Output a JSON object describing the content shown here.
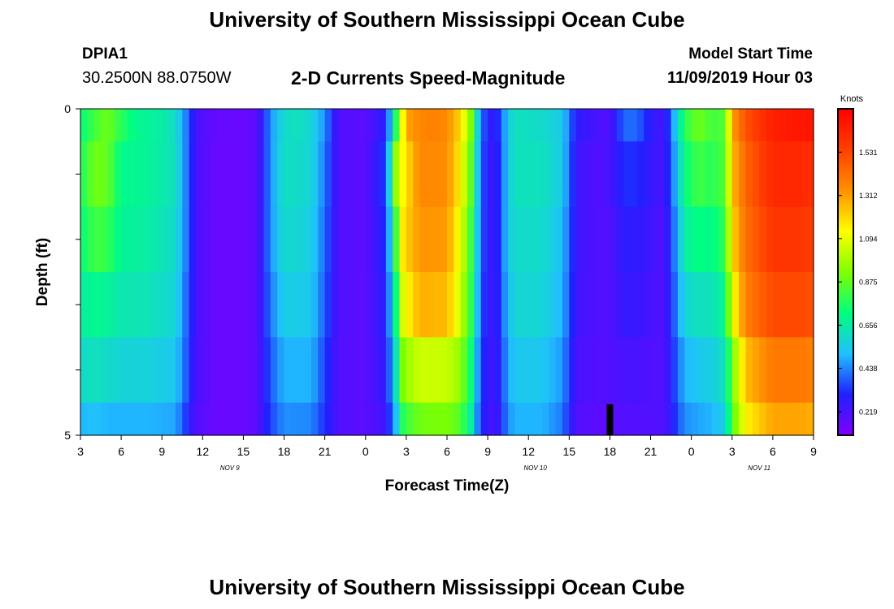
{
  "header": {
    "title": "University of Southern Mississippi Ocean Cube",
    "station_id": "DPIA1",
    "station_coords": "30.2500N 88.0750W",
    "chart_title": "2-D Currents Speed-Magnitude",
    "start_label": "Model Start Time",
    "start_value": "11/09/2019 Hour 03"
  },
  "footer": {
    "title": "University of Southern Mississippi Ocean Cube"
  },
  "chart_data": {
    "type": "heatmap",
    "title": "2-D Currents Speed-Magnitude",
    "xlabel": "Forecast Time(Z)",
    "ylabel": "Depth (ft)",
    "ylim": [
      0,
      5
    ],
    "y_tick_labels": [
      {
        "v": 0,
        "label": "0"
      },
      {
        "v": 5,
        "label": "5"
      }
    ],
    "y_minor_ticks": [
      1,
      2,
      3,
      4
    ],
    "x_range_hours": [
      3,
      57
    ],
    "x_tick_labels": [
      "3",
      "6",
      "9",
      "12",
      "15",
      "18",
      "21",
      "0",
      "3",
      "6",
      "9",
      "12",
      "15",
      "18",
      "21",
      "0",
      "3",
      "6",
      "9"
    ],
    "date_labels": [
      {
        "hour": 14,
        "label": "NOV 9"
      },
      {
        "hour": 36.5,
        "label": "NOV 10"
      },
      {
        "hour": 53,
        "label": "NOV 11"
      }
    ],
    "marker": {
      "hour": 42
    },
    "colorbar": {
      "label": "Knots",
      "min": 0.1,
      "max": 1.75,
      "ticks": [
        "0.219",
        "0.438",
        "0.656",
        "0.875",
        "1.094",
        "1.312",
        "1.531"
      ],
      "colors": [
        "#8000ff",
        "#2020ff",
        "#20c0ff",
        "#00ff80",
        "#80ff00",
        "#ffff00",
        "#ff9000",
        "#ff4000",
        "#ff0000"
      ]
    },
    "depth_bands": [
      {
        "y": [
          0.0,
          0.5
        ],
        "profile": 0
      },
      {
        "y": [
          0.5,
          1.5
        ],
        "profile": 1
      },
      {
        "y": [
          1.5,
          2.5
        ],
        "profile": 2
      },
      {
        "y": [
          2.5,
          3.5
        ],
        "profile": 3
      },
      {
        "y": [
          3.5,
          4.5
        ],
        "profile": 4
      },
      {
        "y": [
          4.5,
          5.0
        ],
        "profile": 5
      }
    ],
    "profiles": [
      [
        [
          3,
          0.72
        ],
        [
          4,
          0.82
        ],
        [
          5,
          0.9
        ],
        [
          6,
          0.78
        ],
        [
          7,
          0.7
        ],
        [
          8,
          0.68
        ],
        [
          9,
          0.66
        ],
        [
          10,
          0.6
        ],
        [
          10.7,
          0.45
        ],
        [
          11.5,
          0.22
        ],
        [
          13,
          0.16
        ],
        [
          15,
          0.15
        ],
        [
          16,
          0.18
        ],
        [
          17,
          0.45
        ],
        [
          18,
          0.6
        ],
        [
          19,
          0.62
        ],
        [
          20,
          0.58
        ],
        [
          21,
          0.45
        ],
        [
          22,
          0.2
        ],
        [
          24,
          0.18
        ],
        [
          25.5,
          0.3
        ],
        [
          26.2,
          0.75
        ],
        [
          27,
          1.3
        ],
        [
          28,
          1.36
        ],
        [
          29,
          1.38
        ],
        [
          30,
          1.35
        ],
        [
          31,
          1.2
        ],
        [
          31.8,
          0.9
        ],
        [
          32.5,
          0.4
        ],
        [
          33.5,
          0.24
        ],
        [
          34.5,
          0.55
        ],
        [
          35,
          0.62
        ],
        [
          37,
          0.6
        ],
        [
          38.5,
          0.55
        ],
        [
          39.5,
          0.28
        ],
        [
          41,
          0.22
        ],
        [
          42,
          0.2
        ],
        [
          43,
          0.4
        ],
        [
          44,
          0.4
        ],
        [
          45,
          0.28
        ],
        [
          46,
          0.22
        ],
        [
          47,
          0.6
        ],
        [
          47.5,
          0.78
        ],
        [
          48.5,
          0.9
        ],
        [
          49.5,
          0.82
        ],
        [
          50.5,
          0.85
        ],
        [
          51,
          1.3
        ],
        [
          52,
          1.5
        ],
        [
          54,
          1.65
        ],
        [
          56,
          1.68
        ],
        [
          57,
          1.68
        ]
      ],
      [
        [
          3,
          0.75
        ],
        [
          4,
          0.9
        ],
        [
          5,
          0.88
        ],
        [
          6,
          0.7
        ],
        [
          8,
          0.68
        ],
        [
          10,
          0.62
        ],
        [
          10.7,
          0.45
        ],
        [
          11.5,
          0.22
        ],
        [
          13,
          0.15
        ],
        [
          15,
          0.15
        ],
        [
          16,
          0.18
        ],
        [
          17,
          0.45
        ],
        [
          18,
          0.62
        ],
        [
          20,
          0.58
        ],
        [
          21,
          0.42
        ],
        [
          22,
          0.2
        ],
        [
          24,
          0.18
        ],
        [
          25.5,
          0.35
        ],
        [
          26.2,
          0.95
        ],
        [
          26.8,
          1.15
        ],
        [
          28,
          1.36
        ],
        [
          30,
          1.35
        ],
        [
          31,
          1.15
        ],
        [
          31.8,
          0.85
        ],
        [
          32.5,
          0.38
        ],
        [
          33.5,
          0.22
        ],
        [
          34.5,
          0.55
        ],
        [
          35,
          0.62
        ],
        [
          37,
          0.62
        ],
        [
          38.5,
          0.55
        ],
        [
          39.5,
          0.25
        ],
        [
          41,
          0.2
        ],
        [
          42,
          0.22
        ],
        [
          43,
          0.32
        ],
        [
          44,
          0.32
        ],
        [
          45,
          0.26
        ],
        [
          46,
          0.22
        ],
        [
          47,
          0.55
        ],
        [
          47.5,
          0.72
        ],
        [
          48.5,
          0.82
        ],
        [
          49.5,
          0.78
        ],
        [
          50.5,
          0.85
        ],
        [
          51,
          1.25
        ],
        [
          52,
          1.45
        ],
        [
          54,
          1.62
        ],
        [
          56,
          1.62
        ],
        [
          57,
          1.6
        ]
      ],
      [
        [
          3,
          0.72
        ],
        [
          4,
          0.82
        ],
        [
          5,
          0.8
        ],
        [
          6,
          0.68
        ],
        [
          8,
          0.66
        ],
        [
          10,
          0.6
        ],
        [
          10.7,
          0.45
        ],
        [
          11.5,
          0.22
        ],
        [
          13,
          0.15
        ],
        [
          15,
          0.15
        ],
        [
          16,
          0.18
        ],
        [
          17,
          0.45
        ],
        [
          18,
          0.6
        ],
        [
          20,
          0.56
        ],
        [
          21,
          0.4
        ],
        [
          22,
          0.2
        ],
        [
          24,
          0.18
        ],
        [
          25.5,
          0.32
        ],
        [
          26.2,
          0.8
        ],
        [
          26.8,
          1.2
        ],
        [
          28,
          1.33
        ],
        [
          30,
          1.32
        ],
        [
          31,
          1.1
        ],
        [
          31.8,
          0.8
        ],
        [
          32.5,
          0.38
        ],
        [
          33.5,
          0.22
        ],
        [
          34.5,
          0.55
        ],
        [
          35,
          0.6
        ],
        [
          37,
          0.6
        ],
        [
          38.5,
          0.52
        ],
        [
          39.5,
          0.25
        ],
        [
          41,
          0.2
        ],
        [
          42,
          0.2
        ],
        [
          43,
          0.28
        ],
        [
          44,
          0.28
        ],
        [
          45,
          0.24
        ],
        [
          46,
          0.2
        ],
        [
          47,
          0.5
        ],
        [
          47.5,
          0.66
        ],
        [
          48.5,
          0.72
        ],
        [
          49.5,
          0.7
        ],
        [
          50.5,
          0.8
        ],
        [
          51,
          1.2
        ],
        [
          52,
          1.42
        ],
        [
          54,
          1.58
        ],
        [
          56,
          1.58
        ],
        [
          57,
          1.55
        ]
      ],
      [
        [
          3,
          0.66
        ],
        [
          4,
          0.7
        ],
        [
          5,
          0.68
        ],
        [
          6,
          0.64
        ],
        [
          8,
          0.63
        ],
        [
          10,
          0.58
        ],
        [
          10.7,
          0.42
        ],
        [
          11.5,
          0.22
        ],
        [
          13,
          0.15
        ],
        [
          15,
          0.15
        ],
        [
          16,
          0.18
        ],
        [
          17,
          0.42
        ],
        [
          18,
          0.56
        ],
        [
          20,
          0.54
        ],
        [
          21,
          0.38
        ],
        [
          22,
          0.2
        ],
        [
          24,
          0.18
        ],
        [
          25.5,
          0.3
        ],
        [
          26.2,
          0.7
        ],
        [
          26.8,
          1.1
        ],
        [
          28,
          1.28
        ],
        [
          30,
          1.26
        ],
        [
          31,
          1.05
        ],
        [
          31.8,
          0.78
        ],
        [
          32.5,
          0.36
        ],
        [
          33.5,
          0.22
        ],
        [
          34.5,
          0.52
        ],
        [
          35,
          0.58
        ],
        [
          37,
          0.58
        ],
        [
          38.5,
          0.5
        ],
        [
          39.5,
          0.24
        ],
        [
          41,
          0.2
        ],
        [
          42,
          0.2
        ],
        [
          43,
          0.26
        ],
        [
          44,
          0.26
        ],
        [
          45,
          0.22
        ],
        [
          46,
          0.2
        ],
        [
          47,
          0.45
        ],
        [
          47.5,
          0.58
        ],
        [
          48.5,
          0.62
        ],
        [
          49.5,
          0.62
        ],
        [
          50.5,
          0.7
        ],
        [
          51,
          1.1
        ],
        [
          52,
          1.38
        ],
        [
          54,
          1.52
        ],
        [
          56,
          1.52
        ],
        [
          57,
          1.5
        ]
      ],
      [
        [
          3,
          0.6
        ],
        [
          4,
          0.62
        ],
        [
          5,
          0.6
        ],
        [
          6,
          0.58
        ],
        [
          8,
          0.57
        ],
        [
          10,
          0.54
        ],
        [
          10.7,
          0.4
        ],
        [
          11.5,
          0.22
        ],
        [
          13,
          0.15
        ],
        [
          15,
          0.15
        ],
        [
          16,
          0.18
        ],
        [
          17,
          0.38
        ],
        [
          18,
          0.5
        ],
        [
          20,
          0.5
        ],
        [
          21,
          0.35
        ],
        [
          22,
          0.2
        ],
        [
          24,
          0.18
        ],
        [
          25.5,
          0.28
        ],
        [
          26.2,
          0.6
        ],
        [
          26.8,
          0.95
        ],
        [
          28,
          1.05
        ],
        [
          30,
          1.04
        ],
        [
          31,
          0.95
        ],
        [
          31.8,
          0.72
        ],
        [
          32.5,
          0.34
        ],
        [
          33.5,
          0.22
        ],
        [
          34.5,
          0.48
        ],
        [
          35,
          0.54
        ],
        [
          37,
          0.54
        ],
        [
          38.5,
          0.46
        ],
        [
          39.5,
          0.22
        ],
        [
          41,
          0.2
        ],
        [
          42,
          0.2
        ],
        [
          43,
          0.22
        ],
        [
          44,
          0.22
        ],
        [
          45,
          0.2
        ],
        [
          46,
          0.2
        ],
        [
          47,
          0.4
        ],
        [
          47.5,
          0.5
        ],
        [
          48.5,
          0.54
        ],
        [
          49.5,
          0.56
        ],
        [
          50.5,
          0.62
        ],
        [
          51,
          0.9
        ],
        [
          52,
          1.25
        ],
        [
          54,
          1.4
        ],
        [
          56,
          1.4
        ],
        [
          57,
          1.38
        ]
      ],
      [
        [
          3,
          0.5
        ],
        [
          4,
          0.52
        ],
        [
          5,
          0.5
        ],
        [
          6,
          0.5
        ],
        [
          8,
          0.5
        ],
        [
          10,
          0.48
        ],
        [
          10.7,
          0.35
        ],
        [
          11.5,
          0.2
        ],
        [
          13,
          0.15
        ],
        [
          15,
          0.15
        ],
        [
          16,
          0.18
        ],
        [
          17,
          0.35
        ],
        [
          18,
          0.45
        ],
        [
          20,
          0.44
        ],
        [
          21,
          0.32
        ],
        [
          22,
          0.2
        ],
        [
          24,
          0.18
        ],
        [
          25.5,
          0.24
        ],
        [
          26.2,
          0.5
        ],
        [
          26.8,
          0.8
        ],
        [
          28,
          0.9
        ],
        [
          30,
          0.92
        ],
        [
          31,
          0.85
        ],
        [
          31.8,
          0.65
        ],
        [
          32.5,
          0.32
        ],
        [
          33.5,
          0.2
        ],
        [
          34.5,
          0.45
        ],
        [
          35,
          0.5
        ],
        [
          37,
          0.5
        ],
        [
          38.5,
          0.42
        ],
        [
          39.5,
          0.2
        ],
        [
          41,
          0.18
        ],
        [
          42,
          0.18
        ],
        [
          43,
          0.2
        ],
        [
          44,
          0.2
        ],
        [
          45,
          0.2
        ],
        [
          46,
          0.2
        ],
        [
          47,
          0.36
        ],
        [
          47.5,
          0.45
        ],
        [
          48.5,
          0.48
        ],
        [
          49.5,
          0.5
        ],
        [
          50.5,
          0.56
        ],
        [
          51,
          0.85
        ],
        [
          52,
          1.15
        ],
        [
          54,
          1.3
        ],
        [
          56,
          1.3
        ],
        [
          57,
          1.28
        ]
      ]
    ]
  }
}
